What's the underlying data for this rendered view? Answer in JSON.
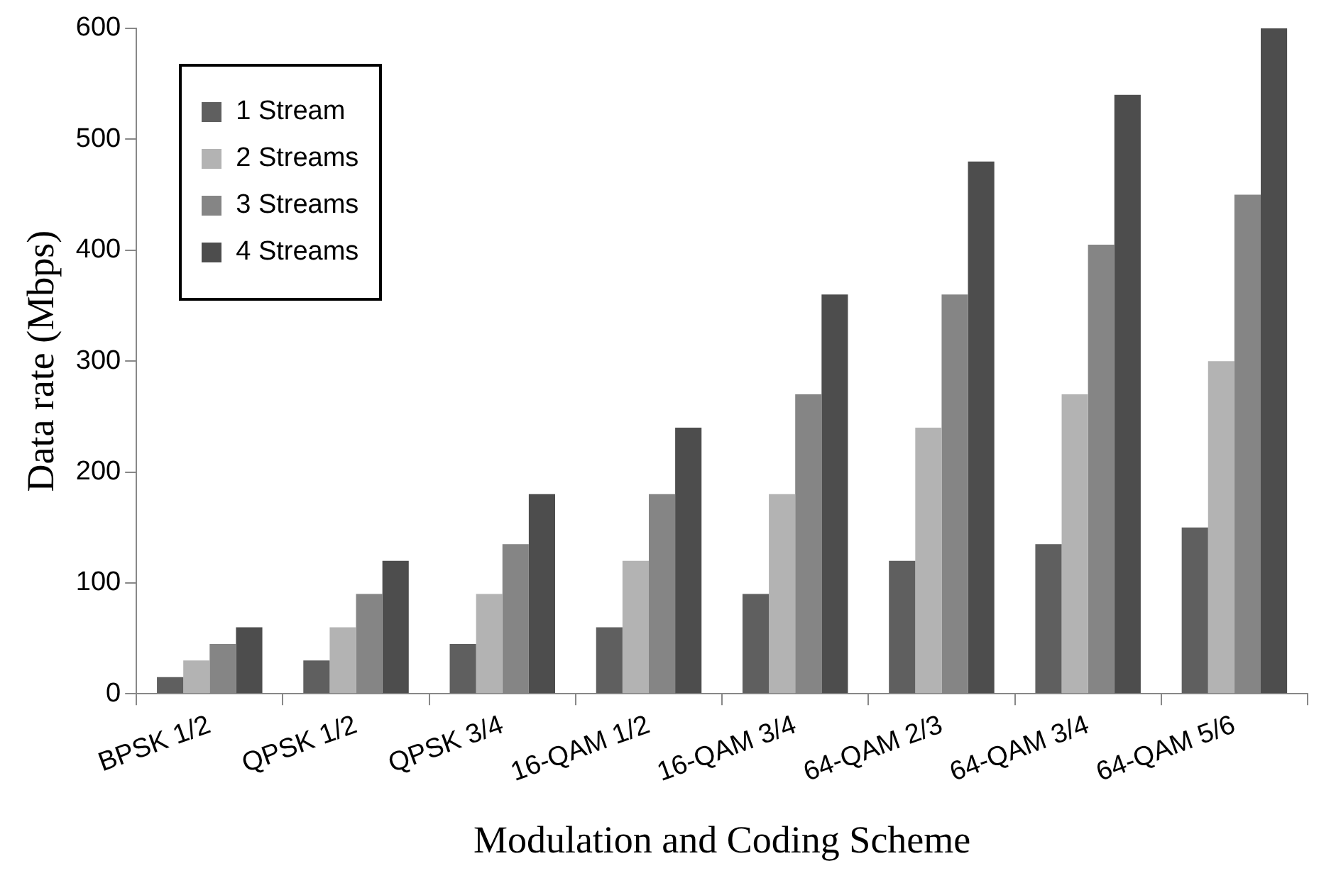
{
  "chart_data": {
    "type": "bar",
    "xlabel": "Modulation and Coding Scheme",
    "ylabel": "Data rate (Mbps)",
    "categories": [
      "BPSK 1/2",
      "QPSK 1/2",
      "QPSK 3/4",
      "16-QAM 1/2",
      "16-QAM 3/4",
      "64-QAM 2/3",
      "64-QAM 3/4",
      "64-QAM 5/6"
    ],
    "series": [
      {
        "name": "1 Stream",
        "color": "#5f5f5f",
        "values": [
          15,
          30,
          45,
          60,
          90,
          120,
          135,
          150
        ]
      },
      {
        "name": "2 Streams",
        "color": "#b3b3b3",
        "values": [
          30,
          60,
          90,
          120,
          180,
          240,
          270,
          300
        ]
      },
      {
        "name": "3 Streams",
        "color": "#858585",
        "values": [
          45,
          90,
          135,
          180,
          270,
          360,
          405,
          450
        ]
      },
      {
        "name": "4 Streams",
        "color": "#4d4d4d",
        "values": [
          60,
          120,
          180,
          240,
          360,
          480,
          540,
          600
        ]
      }
    ],
    "ylim": [
      0,
      600
    ],
    "yticks": [
      0,
      100,
      200,
      300,
      400,
      500,
      600
    ],
    "grid": false,
    "legend": "top left"
  }
}
